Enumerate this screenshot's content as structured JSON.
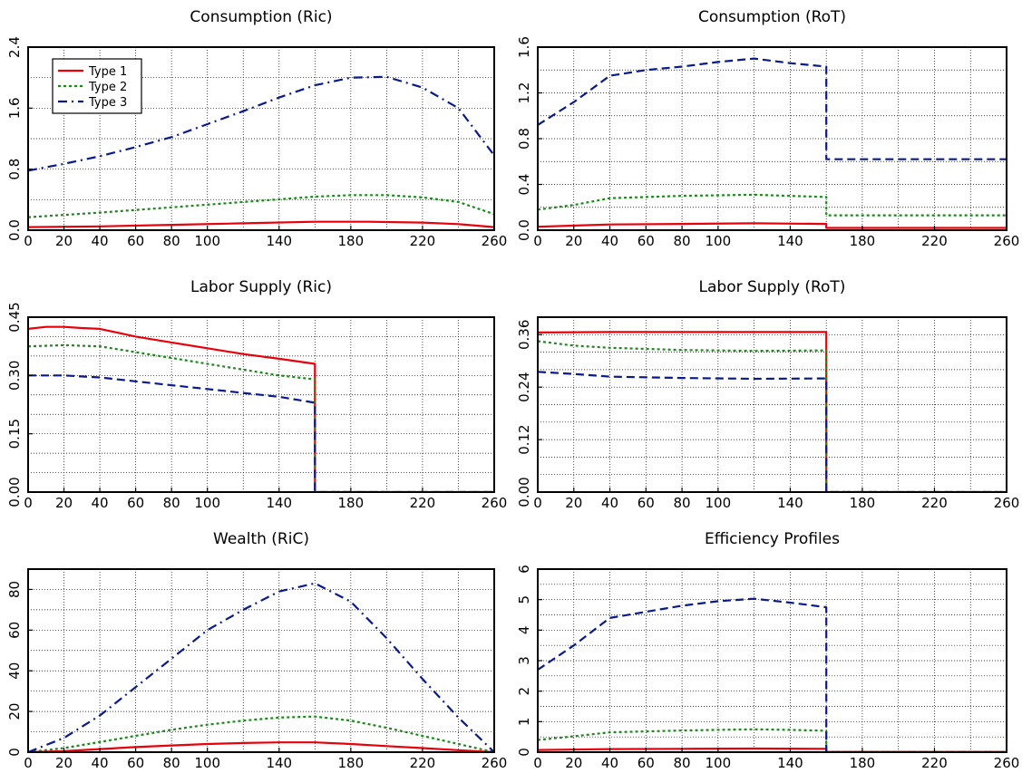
{
  "figure": {
    "background": "#ffffff"
  },
  "legend": {
    "panel": 0,
    "placement": "top-left",
    "entries": [
      {
        "label": "Type 1",
        "color": "#e8000b",
        "dash": "solid"
      },
      {
        "label": "Type 2",
        "color": "#1a8a1a",
        "dash": "dotted"
      },
      {
        "label": "Type 3",
        "color": "#0a1a8c",
        "dash": "dashdot"
      }
    ]
  },
  "chart_data": [
    {
      "type": "line",
      "title": "Consumption (Ric)",
      "xlabel": "",
      "ylabel": "",
      "xlim": [
        0,
        260
      ],
      "ylim": [
        0,
        2.4
      ],
      "xticks": [
        0,
        20,
        40,
        60,
        80,
        100,
        140,
        180,
        220,
        260
      ],
      "xtick_labels": [
        "0",
        "20",
        "40",
        "60",
        "80",
        "100",
        "140",
        "180",
        "220",
        "260"
      ],
      "yticks": [
        0,
        0.8,
        1.6,
        2.4
      ],
      "ytick_labels": [
        "0.0",
        "0.8",
        "1.6",
        "2.4"
      ],
      "xgrid": [
        0,
        20,
        40,
        60,
        80,
        100,
        120,
        140,
        160,
        180,
        200,
        220,
        240,
        260
      ],
      "ygrid": [
        0,
        0.4,
        0.8,
        1.2,
        1.6,
        2.0,
        2.4
      ],
      "grid": true,
      "series": [
        {
          "name": "Type 1",
          "color": "#e8000b",
          "dash": "solid",
          "x": [
            0,
            40,
            80,
            120,
            160,
            190,
            220,
            240,
            260
          ],
          "y": [
            0.04,
            0.05,
            0.07,
            0.09,
            0.11,
            0.11,
            0.1,
            0.08,
            0.04
          ]
        },
        {
          "name": "Type 2",
          "color": "#1a8a1a",
          "dash": "dotted",
          "x": [
            0,
            40,
            80,
            120,
            160,
            180,
            200,
            220,
            240,
            260
          ],
          "y": [
            0.17,
            0.23,
            0.3,
            0.37,
            0.44,
            0.46,
            0.46,
            0.43,
            0.37,
            0.21
          ]
        },
        {
          "name": "Type 3",
          "color": "#0a1a8c",
          "dash": "dashdot",
          "x": [
            0,
            20,
            40,
            60,
            80,
            100,
            120,
            140,
            160,
            180,
            200,
            220,
            240,
            260
          ],
          "y": [
            0.78,
            0.87,
            0.97,
            1.09,
            1.22,
            1.39,
            1.56,
            1.74,
            1.9,
            2.0,
            2.01,
            1.87,
            1.6,
            0.98
          ]
        }
      ]
    },
    {
      "type": "line",
      "title": "Consumption (RoT)",
      "xlabel": "",
      "ylabel": "",
      "xlim": [
        0,
        260
      ],
      "ylim": [
        0,
        1.6
      ],
      "xticks": [
        0,
        20,
        40,
        60,
        80,
        100,
        140,
        180,
        220,
        260
      ],
      "xtick_labels": [
        "0",
        "20",
        "40",
        "60",
        "80",
        "100",
        "140",
        "180",
        "220",
        "260"
      ],
      "yticks": [
        0,
        0.4,
        0.8,
        1.2,
        1.6
      ],
      "ytick_labels": [
        "0.0",
        "0.4",
        "0.8",
        "1.2",
        "1.6"
      ],
      "xgrid": [
        0,
        20,
        40,
        60,
        80,
        100,
        120,
        140,
        160,
        180,
        200,
        220,
        240,
        260
      ],
      "ygrid": [
        0,
        0.2,
        0.4,
        0.6,
        0.8,
        1.0,
        1.2,
        1.4,
        1.6
      ],
      "grid": true,
      "series": [
        {
          "name": "Type 1",
          "color": "#e8000b",
          "dash": "solid",
          "x": [
            0,
            40,
            80,
            120,
            160,
            160,
            260
          ],
          "y": [
            0.03,
            0.05,
            0.055,
            0.06,
            0.055,
            0.02,
            0.02
          ]
        },
        {
          "name": "Type 2",
          "color": "#1a8a1a",
          "dash": "dotted",
          "x": [
            0,
            20,
            40,
            80,
            120,
            160,
            160,
            260
          ],
          "y": [
            0.18,
            0.22,
            0.28,
            0.3,
            0.31,
            0.29,
            0.13,
            0.13
          ]
        },
        {
          "name": "Type 3",
          "color": "#0a1a8c",
          "dash": "dashed",
          "x": [
            0,
            20,
            40,
            60,
            80,
            100,
            120,
            140,
            160,
            160,
            260
          ],
          "y": [
            0.92,
            1.12,
            1.35,
            1.4,
            1.43,
            1.47,
            1.5,
            1.46,
            1.43,
            0.62,
            0.62
          ]
        }
      ]
    },
    {
      "type": "line",
      "title": "Labor Supply (Ric)",
      "xlabel": "",
      "ylabel": "",
      "xlim": [
        0,
        260
      ],
      "ylim": [
        0,
        0.45
      ],
      "xticks": [
        0,
        20,
        40,
        60,
        80,
        100,
        140,
        180,
        220,
        260
      ],
      "xtick_labels": [
        "0",
        "20",
        "40",
        "60",
        "80",
        "100",
        "140",
        "180",
        "220",
        "260"
      ],
      "yticks": [
        0,
        0.15,
        0.3,
        0.45
      ],
      "ytick_labels": [
        "0.00",
        "0.15",
        "0.30",
        "0.45"
      ],
      "xgrid": [
        0,
        20,
        40,
        60,
        80,
        100,
        120,
        140,
        160,
        180,
        200,
        220,
        240,
        260
      ],
      "ygrid": [
        0,
        0.05,
        0.1,
        0.15,
        0.2,
        0.25,
        0.3,
        0.35,
        0.4,
        0.45
      ],
      "grid": true,
      "series": [
        {
          "name": "Type 1",
          "color": "#e8000b",
          "dash": "solid",
          "x": [
            0,
            10,
            20,
            30,
            40,
            60,
            80,
            100,
            120,
            140,
            160,
            160,
            260
          ],
          "y": [
            0.42,
            0.425,
            0.425,
            0.422,
            0.42,
            0.4,
            0.385,
            0.37,
            0.355,
            0.343,
            0.33,
            0,
            0
          ]
        },
        {
          "name": "Type 2",
          "color": "#1a8a1a",
          "dash": "dotted",
          "x": [
            0,
            20,
            40,
            60,
            80,
            100,
            120,
            140,
            160,
            160,
            260
          ],
          "y": [
            0.375,
            0.378,
            0.375,
            0.36,
            0.345,
            0.33,
            0.315,
            0.3,
            0.29,
            0,
            0
          ]
        },
        {
          "name": "Type 3",
          "color": "#0a1a8c",
          "dash": "dashed",
          "x": [
            0,
            20,
            40,
            60,
            80,
            100,
            120,
            140,
            160,
            160,
            260
          ],
          "y": [
            0.3,
            0.3,
            0.295,
            0.285,
            0.275,
            0.265,
            0.255,
            0.245,
            0.23,
            0,
            0
          ]
        }
      ]
    },
    {
      "type": "line",
      "title": "Labor Supply (RoT)",
      "xlabel": "",
      "ylabel": "",
      "xlim": [
        0,
        260
      ],
      "ylim": [
        0,
        0.4
      ],
      "xticks": [
        0,
        20,
        40,
        60,
        80,
        100,
        140,
        180,
        220,
        260
      ],
      "xtick_labels": [
        "0",
        "20",
        "40",
        "60",
        "80",
        "100",
        "140",
        "180",
        "220",
        "260"
      ],
      "yticks": [
        0,
        0.12,
        0.24,
        0.36
      ],
      "ytick_labels": [
        "0.00",
        "0.12",
        "0.24",
        "0.36"
      ],
      "xgrid": [
        0,
        20,
        40,
        60,
        80,
        100,
        120,
        140,
        160,
        180,
        200,
        220,
        240,
        260
      ],
      "ygrid": [
        0,
        0.04,
        0.08,
        0.12,
        0.16,
        0.2,
        0.24,
        0.28,
        0.32,
        0.36
      ],
      "grid": true,
      "series": [
        {
          "name": "Type 1",
          "color": "#e8000b",
          "dash": "solid",
          "x": [
            0,
            40,
            80,
            120,
            160,
            160,
            260
          ],
          "y": [
            0.365,
            0.366,
            0.366,
            0.366,
            0.366,
            0,
            0
          ]
        },
        {
          "name": "Type 2",
          "color": "#1a8a1a",
          "dash": "dotted",
          "x": [
            0,
            20,
            40,
            80,
            120,
            160,
            160,
            260
          ],
          "y": [
            0.345,
            0.335,
            0.33,
            0.325,
            0.323,
            0.324,
            0,
            0
          ]
        },
        {
          "name": "Type 3",
          "color": "#0a1a8c",
          "dash": "dashed",
          "x": [
            0,
            20,
            40,
            80,
            120,
            160,
            160,
            260
          ],
          "y": [
            0.275,
            0.27,
            0.264,
            0.261,
            0.259,
            0.26,
            0,
            0
          ]
        }
      ]
    },
    {
      "type": "line",
      "title": "Wealth (RiC)",
      "xlabel": "",
      "ylabel": "",
      "xlim": [
        0,
        260
      ],
      "ylim": [
        0,
        90
      ],
      "xticks": [
        0,
        20,
        40,
        60,
        80,
        100,
        140,
        180,
        220,
        260
      ],
      "xtick_labels": [
        "0",
        "20",
        "40",
        "60",
        "80",
        "100",
        "140",
        "180",
        "220",
        "260"
      ],
      "yticks": [
        0,
        20,
        40,
        60,
        80
      ],
      "ytick_labels": [
        "0",
        "20",
        "40",
        "60",
        "80"
      ],
      "xgrid": [
        0,
        20,
        40,
        60,
        80,
        100,
        120,
        140,
        160,
        180,
        200,
        220,
        240,
        260
      ],
      "ygrid": [
        0,
        10,
        20,
        30,
        40,
        50,
        60,
        70,
        80,
        90
      ],
      "grid": true,
      "series": [
        {
          "name": "Type 1",
          "color": "#e8000b",
          "dash": "solid",
          "x": [
            0,
            20,
            40,
            60,
            80,
            100,
            120,
            140,
            160,
            180,
            200,
            220,
            240,
            260
          ],
          "y": [
            0,
            0.5,
            1.5,
            2.5,
            3.3,
            4.0,
            4.5,
            4.8,
            4.8,
            4.0,
            3.0,
            2.0,
            1.0,
            0
          ]
        },
        {
          "name": "Type 2",
          "color": "#1a8a1a",
          "dash": "dotted",
          "x": [
            0,
            20,
            40,
            60,
            80,
            100,
            120,
            140,
            160,
            180,
            200,
            220,
            240,
            260
          ],
          "y": [
            0,
            2,
            5,
            8,
            11,
            13.5,
            15.5,
            17,
            17.5,
            15.5,
            12,
            8,
            4,
            0
          ]
        },
        {
          "name": "Type 3",
          "color": "#0a1a8c",
          "dash": "dashdot",
          "x": [
            0,
            20,
            40,
            60,
            80,
            100,
            120,
            140,
            160,
            180,
            200,
            220,
            240,
            260
          ],
          "y": [
            0,
            7,
            18,
            32,
            46,
            60,
            70,
            79,
            83,
            74,
            56,
            36,
            17,
            0
          ]
        }
      ]
    },
    {
      "type": "line",
      "title": "Efficiency Profiles",
      "xlabel": "",
      "ylabel": "",
      "xlim": [
        0,
        260
      ],
      "ylim": [
        0,
        6
      ],
      "xticks": [
        0,
        20,
        40,
        60,
        80,
        100,
        140,
        180,
        220,
        260
      ],
      "xtick_labels": [
        "0",
        "20",
        "40",
        "60",
        "80",
        "100",
        "140",
        "180",
        "220",
        "260"
      ],
      "yticks": [
        0,
        1,
        2,
        3,
        4,
        5,
        6
      ],
      "ytick_labels": [
        "0",
        "1",
        "2",
        "3",
        "4",
        "5",
        "6"
      ],
      "xgrid": [
        0,
        20,
        40,
        60,
        80,
        100,
        120,
        140,
        160,
        180,
        200,
        220,
        240,
        260
      ],
      "ygrid": [
        0,
        0.5,
        1,
        1.5,
        2,
        2.5,
        3,
        3.5,
        4,
        4.5,
        5,
        5.5,
        6
      ],
      "grid": true,
      "series": [
        {
          "name": "Type 1",
          "color": "#e8000b",
          "dash": "solid",
          "x": [
            0,
            40,
            80,
            120,
            160,
            160,
            260
          ],
          "y": [
            0.07,
            0.1,
            0.11,
            0.12,
            0.11,
            0.01,
            0.01
          ]
        },
        {
          "name": "Type 2",
          "color": "#1a8a1a",
          "dash": "dotted",
          "x": [
            0,
            20,
            40,
            60,
            80,
            100,
            120,
            140,
            160,
            160,
            260
          ],
          "y": [
            0.4,
            0.52,
            0.65,
            0.68,
            0.71,
            0.73,
            0.75,
            0.73,
            0.7,
            0.01,
            0.01
          ]
        },
        {
          "name": "Type 3",
          "color": "#0a1a8c",
          "dash": "dashed",
          "x": [
            0,
            20,
            40,
            60,
            80,
            100,
            120,
            140,
            160,
            160,
            260
          ],
          "y": [
            2.7,
            3.5,
            4.4,
            4.6,
            4.8,
            4.95,
            5.03,
            4.9,
            4.75,
            0,
            0
          ]
        }
      ]
    }
  ]
}
